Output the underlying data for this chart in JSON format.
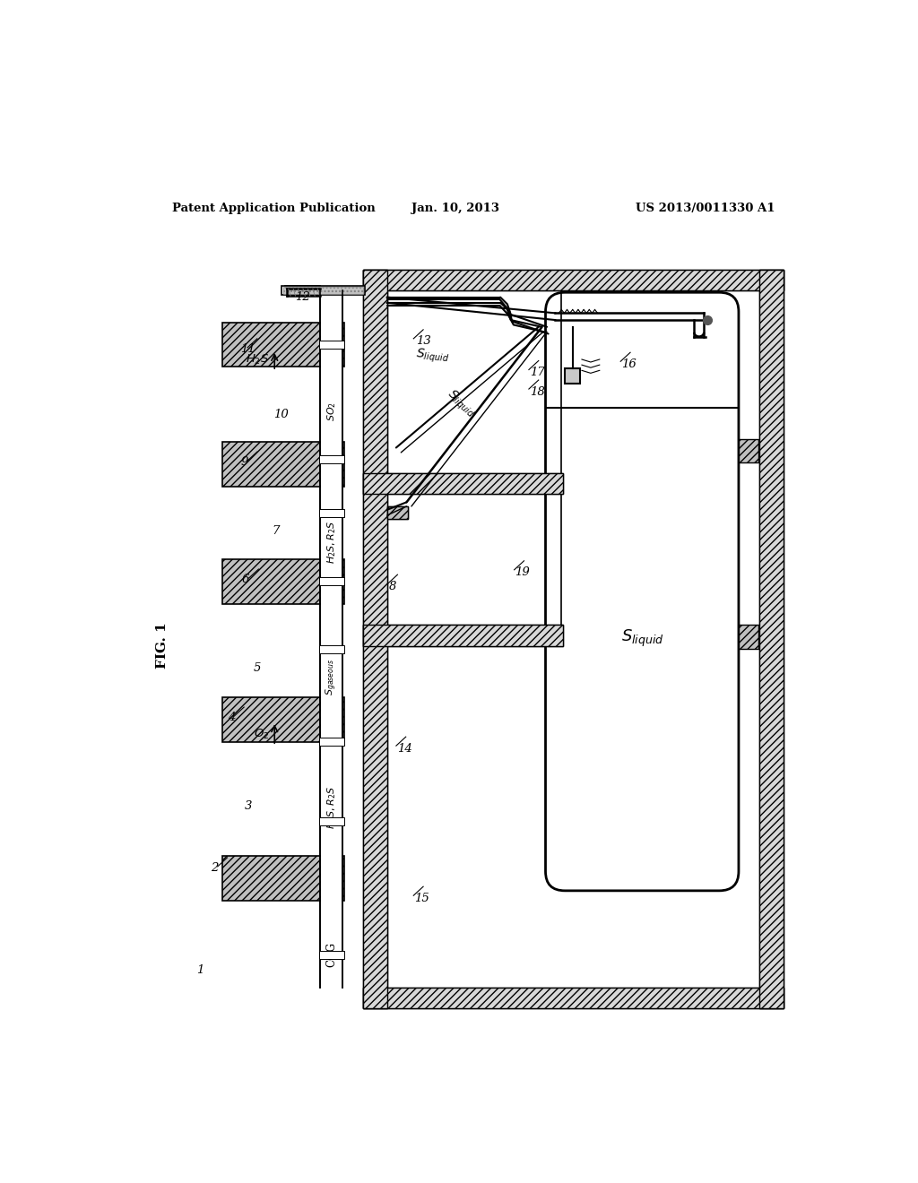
{
  "header_left": "Patent Application Publication",
  "header_center": "Jan. 10, 2013",
  "header_right": "US 2013/0011330 A1",
  "fig_label": "FIG. 1",
  "bg_color": "#ffffff"
}
